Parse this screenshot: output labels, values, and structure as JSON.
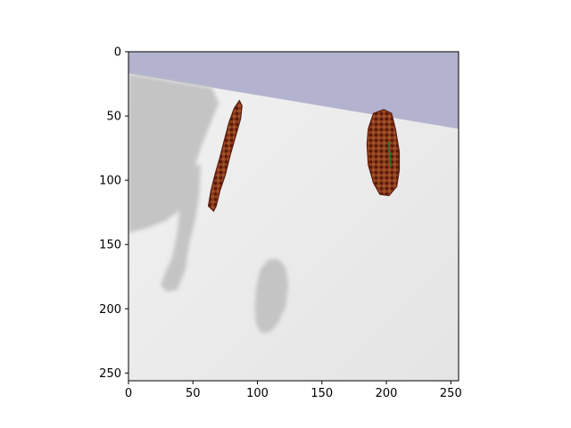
{
  "chart_data": {
    "type": "image",
    "title": "",
    "xlabel": "",
    "ylabel": "",
    "xlim": [
      0,
      256
    ],
    "ylim": [
      256,
      0
    ],
    "x_ticks": [
      0,
      50,
      100,
      150,
      200,
      250
    ],
    "y_ticks": [
      0,
      50,
      100,
      150,
      200,
      250
    ],
    "grid": false,
    "legend": "none",
    "image_content": {
      "sky_color": "#b3b3cf",
      "floor_color": "#e4e4e4",
      "floor_highlight_color": "#f2f2f2",
      "shadow_color": "#c4c4c4",
      "object_colors": [
        "#5a1a0c",
        "#8a3a1a",
        "#a05228",
        "#2f6f2f"
      ],
      "horizon_line": {
        "from": [
          0,
          17
        ],
        "to": [
          256,
          60
        ]
      },
      "objects": [
        {
          "name": "tilted-disc-object",
          "polygon": [
            [
              62,
              120
            ],
            [
              64,
              108
            ],
            [
              67,
              96
            ],
            [
              71,
              82
            ],
            [
              74,
              70
            ],
            [
              78,
              55
            ],
            [
              82,
              44
            ],
            [
              86,
              38
            ],
            [
              88,
              42
            ],
            [
              87,
              52
            ],
            [
              83,
              66
            ],
            [
              79,
              80
            ],
            [
              75,
              96
            ],
            [
              71,
              108
            ],
            [
              68,
              120
            ],
            [
              66,
              124
            ]
          ]
        },
        {
          "name": "round-disc-object",
          "polygon": [
            [
              186,
              60
            ],
            [
              190,
              48
            ],
            [
              198,
              45
            ],
            [
              204,
              48
            ],
            [
              207,
              60
            ],
            [
              210,
              78
            ],
            [
              210,
              92
            ],
            [
              208,
              105
            ],
            [
              202,
              112
            ],
            [
              195,
              111
            ],
            [
              190,
              102
            ],
            [
              186,
              88
            ],
            [
              185,
              72
            ]
          ]
        }
      ],
      "shadows": [
        {
          "name": "left-wall-shadow",
          "polygon": [
            [
              0,
              17
            ],
            [
              65,
              28
            ],
            [
              70,
              40
            ],
            [
              56,
              75
            ],
            [
              48,
              100
            ],
            [
              44,
              115
            ],
            [
              38,
              125
            ],
            [
              28,
              132
            ],
            [
              15,
              137
            ],
            [
              0,
              141
            ]
          ]
        },
        {
          "name": "stick-shadow",
          "polygon": [
            [
              44,
              90
            ],
            [
              56,
              88
            ],
            [
              55,
              110
            ],
            [
              52,
              130
            ],
            [
              47,
              150
            ],
            [
              44,
              170
            ],
            [
              38,
              185
            ],
            [
              30,
              187
            ],
            [
              25,
              182
            ],
            [
              28,
              173
            ],
            [
              34,
              160
            ],
            [
              38,
              140
            ],
            [
              40,
              118
            ]
          ]
        },
        {
          "name": "disc-shadow",
          "polygon": [
            [
              108,
              162
            ],
            [
              116,
              161
            ],
            [
              122,
              168
            ],
            [
              124,
              182
            ],
            [
              122,
              198
            ],
            [
              116,
              211
            ],
            [
              110,
              218
            ],
            [
              103,
              219
            ],
            [
              99,
              212
            ],
            [
              98,
              198
            ],
            [
              99,
              184
            ],
            [
              102,
              170
            ]
          ]
        }
      ]
    }
  }
}
